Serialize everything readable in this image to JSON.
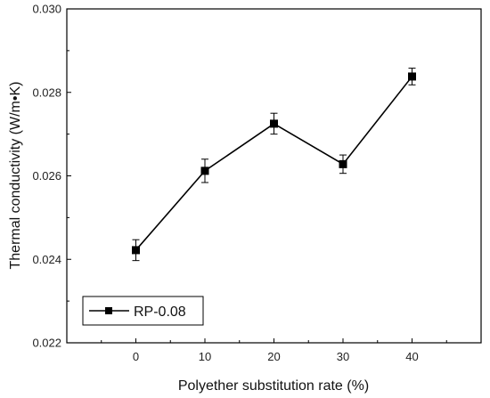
{
  "chart_data": {
    "type": "line",
    "xlabel": "Polyether substitution rate (%)",
    "ylabel": "Thermal conductivity (W/m•K)",
    "x": [
      0,
      10,
      20,
      30,
      40
    ],
    "xlim": [
      -10,
      50
    ],
    "ylim": [
      0.022,
      0.03
    ],
    "xticks": [
      "0",
      "10",
      "20",
      "30",
      "40"
    ],
    "yticks": [
      "0.022",
      "0.024",
      "0.026",
      "0.028",
      "0.030"
    ],
    "series": [
      {
        "name": "RP-0.08",
        "values": [
          0.02422,
          0.02612,
          0.02725,
          0.02628,
          0.02838
        ],
        "errors": [
          0.00025,
          0.00028,
          0.00025,
          0.00022,
          0.0002
        ],
        "color": "#000000",
        "marker": "square"
      }
    ],
    "legend_position": "bottom-left",
    "grid": false
  }
}
